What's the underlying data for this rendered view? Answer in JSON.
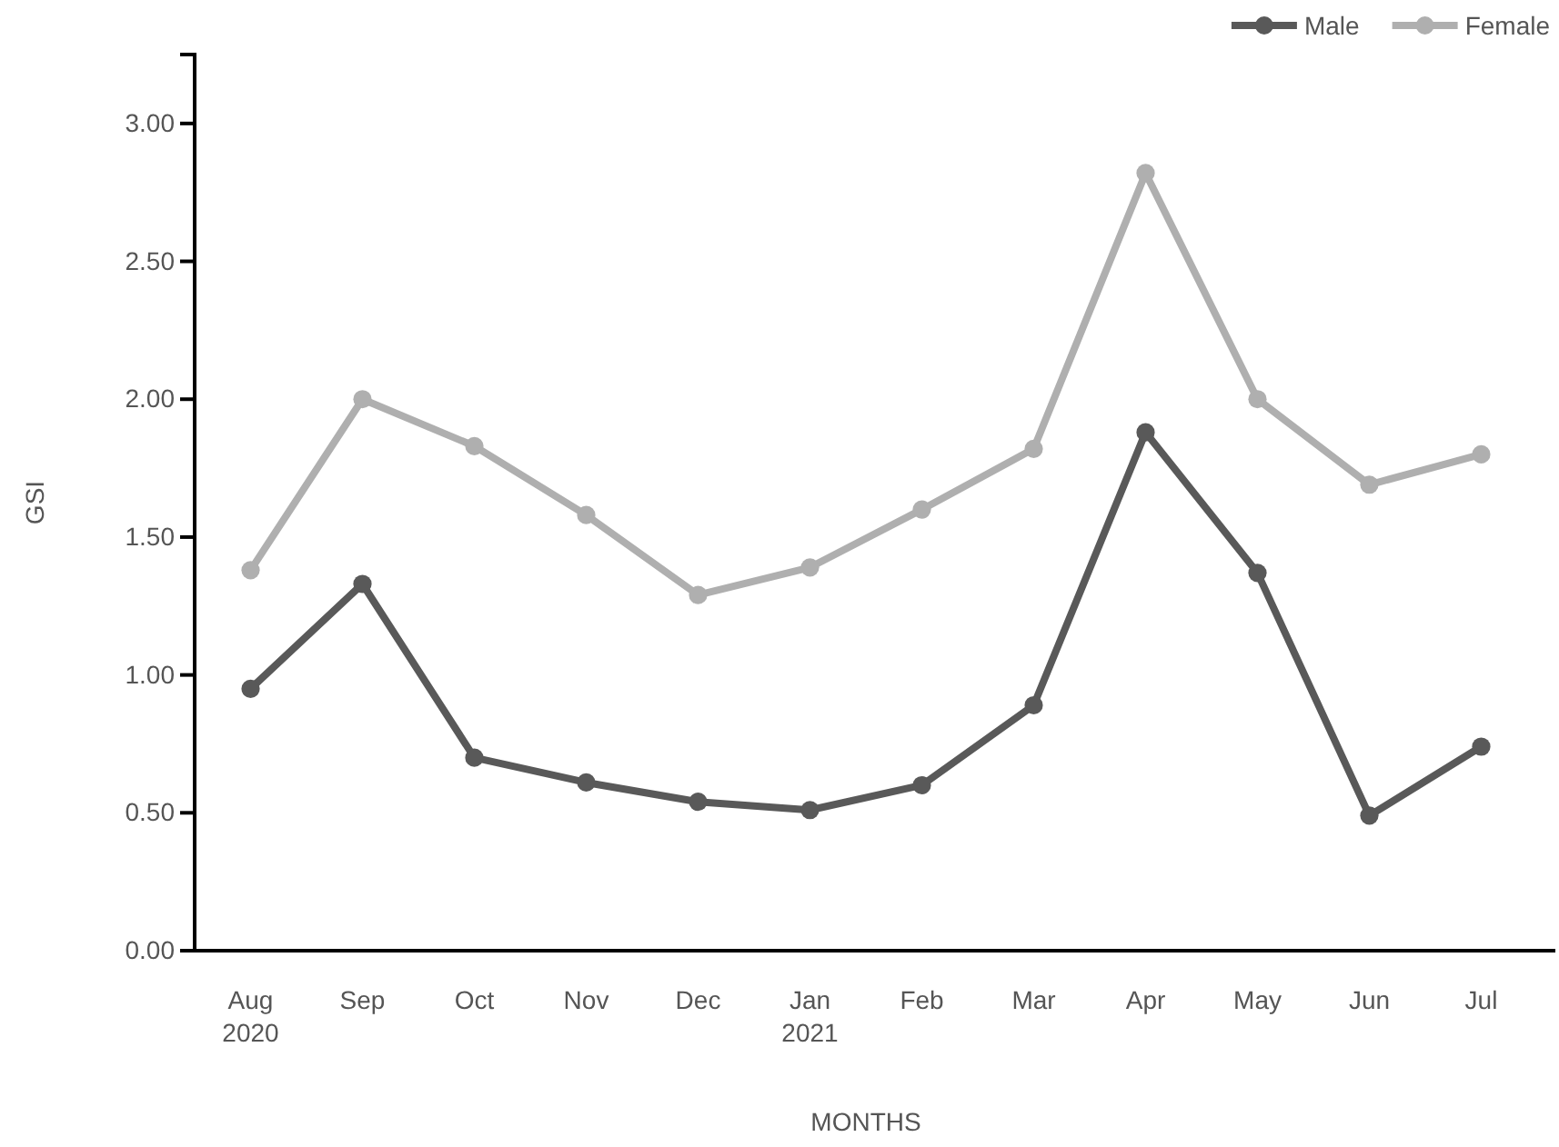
{
  "chart_data": {
    "type": "line",
    "xlabel": "MONTHS",
    "ylabel": "GSI",
    "categories": [
      "Aug\n2020",
      "Sep",
      "Oct",
      "Nov",
      "Dec",
      "Jan\n2021",
      "Feb",
      "Mar",
      "Apr",
      "May",
      "Jun",
      "Jul"
    ],
    "series": [
      {
        "name": "Male",
        "color": "#595959",
        "values": [
          0.95,
          1.33,
          0.7,
          0.61,
          0.54,
          0.51,
          0.6,
          0.89,
          1.88,
          1.37,
          0.49,
          0.74
        ]
      },
      {
        "name": "Female",
        "color": "#afafaf",
        "values": [
          1.38,
          2.0,
          1.83,
          1.58,
          1.29,
          1.39,
          1.6,
          1.82,
          2.82,
          2.0,
          1.69,
          1.8
        ]
      }
    ],
    "ylim": [
      0,
      3.25
    ],
    "yticks": [
      {
        "value": 0,
        "label": "0.00"
      },
      {
        "value": 0.5,
        "label": "0.50"
      },
      {
        "value": 1,
        "label": "1.00"
      },
      {
        "value": 1.5,
        "label": "1.50"
      },
      {
        "value": 2,
        "label": "2.00"
      },
      {
        "value": 2.5,
        "label": "2.50"
      },
      {
        "value": 3,
        "label": "3.00"
      }
    ],
    "grid": false,
    "legend": "top right",
    "marker": "circle",
    "line_style": "solid"
  }
}
